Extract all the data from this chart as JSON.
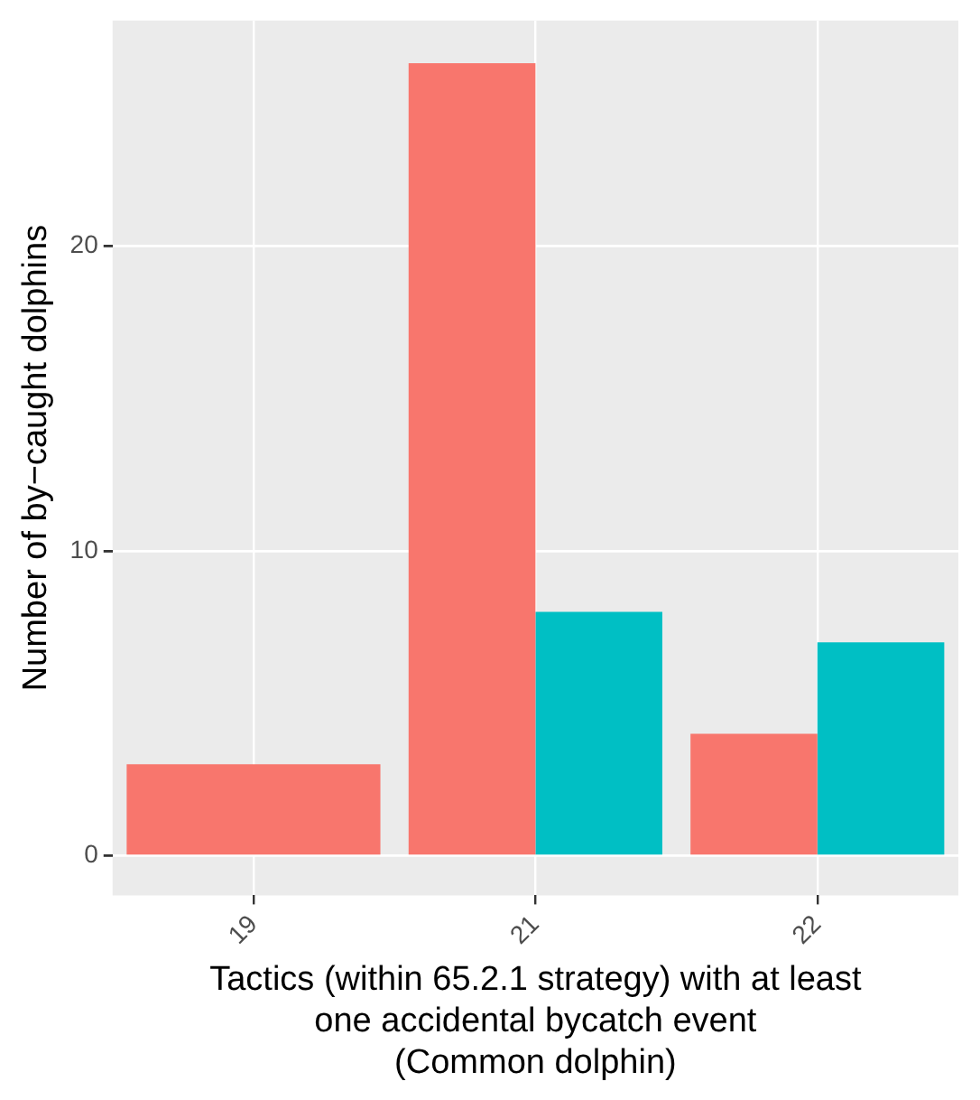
{
  "chart_data": {
    "type": "bar",
    "ylabel": "Number of by−caught dolphins",
    "xlabel": "Tactics (within 65.2.1 strategy) with at least\none accidental bycatch event\n(Common dolphin)",
    "categories": [
      "19",
      "21",
      "22"
    ],
    "series": [
      {
        "color": "#f8766d",
        "values": [
          3,
          26,
          4
        ]
      },
      {
        "color": "#00bfc4",
        "values": [
          null,
          8,
          7
        ]
      }
    ],
    "ylim": [
      -1.3,
      27.4
    ],
    "yticks": [
      0,
      10,
      20
    ],
    "grid": true,
    "legend": false
  }
}
